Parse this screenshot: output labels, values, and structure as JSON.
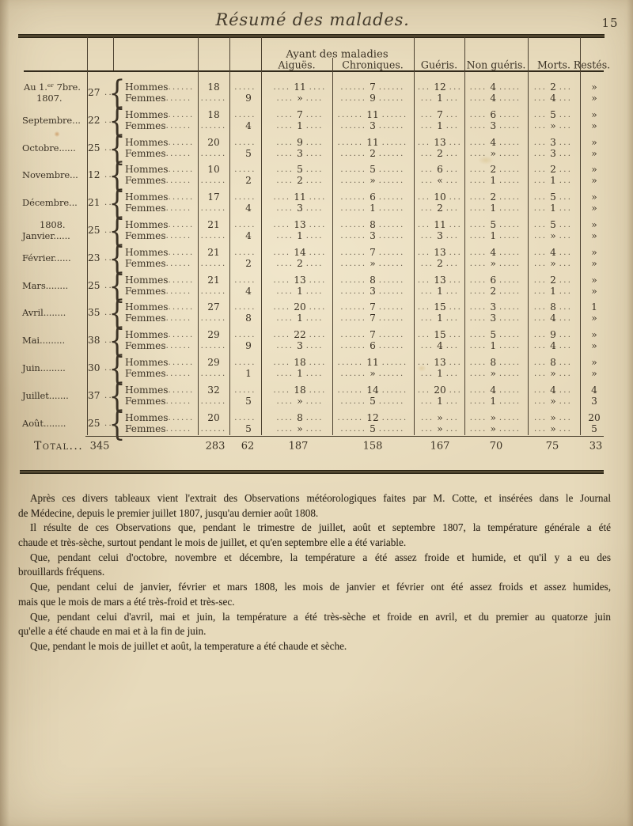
{
  "page": {
    "title": "Résumé des malades.",
    "page_number": "15"
  },
  "table": {
    "header": {
      "group": "Ayant des maladies",
      "aigues": "Aiguës.",
      "chroniques": "Chroniques.",
      "gueris": "Guéris.",
      "non_gueris": "Non guéris.",
      "morts": "Morts.",
      "restes": "Restés."
    },
    "labels": {
      "hommes": "Hommes",
      "femmes": "Femmes"
    },
    "months": [
      {
        "name_top": "Au 1.ᵉʳ 7bre.",
        "name": "1807.",
        "admis": "27",
        "hommes": {
          "count": "18",
          "aigues": "11",
          "chroniques": "7",
          "gueris": "12",
          "non_gueris": "4",
          "morts": "2",
          "restes": "»"
        },
        "femmes": {
          "count": "9",
          "aigues": "»",
          "chroniques": "9",
          "gueris": "1",
          "non_gueris": "4",
          "morts": "4",
          "restes": "»"
        }
      },
      {
        "name": "Septembre...",
        "admis": "22",
        "hommes": {
          "count": "18",
          "aigues": "7",
          "chroniques": "11",
          "gueris": "7",
          "non_gueris": "6",
          "morts": "5",
          "restes": "»"
        },
        "femmes": {
          "count": "4",
          "aigues": "1",
          "chroniques": "3",
          "gueris": "1",
          "non_gueris": "3",
          "morts": "»",
          "restes": "»"
        }
      },
      {
        "name": "Octobre......",
        "admis": "25",
        "hommes": {
          "count": "20",
          "aigues": "9",
          "chroniques": "11",
          "gueris": "13",
          "non_gueris": "4",
          "morts": "3",
          "restes": "»"
        },
        "femmes": {
          "count": "5",
          "aigues": "3",
          "chroniques": "2",
          "gueris": "2",
          "non_gueris": "»",
          "morts": "3",
          "restes": "»"
        }
      },
      {
        "name": "Novembre...",
        "admis": "12",
        "hommes": {
          "count": "10",
          "aigues": "5",
          "chroniques": "5",
          "gueris": "6",
          "non_gueris": "2",
          "morts": "2",
          "restes": "»"
        },
        "femmes": {
          "count": "2",
          "aigues": "2",
          "chroniques": "»",
          "gueris": "«",
          "non_gueris": "1",
          "morts": "1",
          "restes": "»"
        }
      },
      {
        "name": "Décembre...",
        "admis": "21",
        "hommes": {
          "count": "17",
          "aigues": "11",
          "chroniques": "6",
          "gueris": "10",
          "non_gueris": "2",
          "morts": "5",
          "restes": "»"
        },
        "femmes": {
          "count": "4",
          "aigues": "3",
          "chroniques": "1",
          "gueris": "2",
          "non_gueris": "1",
          "morts": "1",
          "restes": "»"
        }
      },
      {
        "name_top": "1808.",
        "name": "Janvier......",
        "admis": "25",
        "hommes": {
          "count": "21",
          "aigues": "13",
          "chroniques": "8",
          "gueris": "11",
          "non_gueris": "5",
          "morts": "5",
          "restes": "»"
        },
        "femmes": {
          "count": "4",
          "aigues": "1",
          "chroniques": "3",
          "gueris": "3",
          "non_gueris": "1",
          "morts": "»",
          "restes": "»"
        }
      },
      {
        "name": "Février......",
        "admis": "23",
        "hommes": {
          "count": "21",
          "aigues": "14",
          "chroniques": "7",
          "gueris": "13",
          "non_gueris": "4",
          "morts": "4",
          "restes": "»"
        },
        "femmes": {
          "count": "2",
          "aigues": "2",
          "chroniques": "»",
          "gueris": "2",
          "non_gueris": "»",
          "morts": "»",
          "restes": "»"
        }
      },
      {
        "name": "Mars........",
        "admis": "25",
        "hommes": {
          "count": "21",
          "aigues": "13",
          "chroniques": "8",
          "gueris": "13",
          "non_gueris": "6",
          "morts": "2",
          "restes": "»"
        },
        "femmes": {
          "count": "4",
          "aigues": "1",
          "chroniques": "3",
          "gueris": "1",
          "non_gueris": "2",
          "morts": "1",
          "restes": "»"
        }
      },
      {
        "name": "Avril........",
        "admis": "35",
        "hommes": {
          "count": "27",
          "aigues": "20",
          "chroniques": "7",
          "gueris": "15",
          "non_gueris": "3",
          "morts": "8",
          "restes": "1"
        },
        "femmes": {
          "count": "8",
          "aigues": "1",
          "chroniques": "7",
          "gueris": "1",
          "non_gueris": "3",
          "morts": "4",
          "restes": "»"
        }
      },
      {
        "name": "Mai.........",
        "admis": "38",
        "hommes": {
          "count": "29",
          "aigues": "22",
          "chroniques": "7",
          "gueris": "15",
          "non_gueris": "5",
          "morts": "9",
          "restes": "»"
        },
        "femmes": {
          "count": "9",
          "aigues": "3",
          "chroniques": "6",
          "gueris": "4",
          "non_gueris": "1",
          "morts": "4",
          "restes": "»"
        }
      },
      {
        "name": "Juin.........",
        "admis": "30",
        "hommes": {
          "count": "29",
          "aigues": "18",
          "chroniques": "11",
          "gueris": "13",
          "non_gueris": "8",
          "morts": "8",
          "restes": "»"
        },
        "femmes": {
          "count": "1",
          "aigues": "1",
          "chroniques": "»",
          "gueris": "1",
          "non_gueris": "»",
          "morts": "»",
          "restes": "»"
        }
      },
      {
        "name": "Juillet.......",
        "admis": "37",
        "hommes": {
          "count": "32",
          "aigues": "18",
          "chroniques": "14",
          "gueris": "20",
          "non_gueris": "4",
          "morts": "4",
          "restes": "4"
        },
        "femmes": {
          "count": "5",
          "aigues": "»",
          "chroniques": "5",
          "gueris": "1",
          "non_gueris": "1",
          "morts": "»",
          "restes": "3"
        }
      },
      {
        "name": "Août........",
        "admis": "25",
        "hommes": {
          "count": "20",
          "aigues": "8",
          "chroniques": "12",
          "gueris": "»",
          "non_gueris": "»",
          "morts": "»",
          "restes": "20"
        },
        "femmes": {
          "count": "5",
          "aigues": "»",
          "chroniques": "5",
          "gueris": "»",
          "non_gueris": "»",
          "morts": "»",
          "restes": "5"
        }
      }
    ],
    "total": {
      "label": "Total...",
      "admis": "345",
      "hommes": "283",
      "femmes": "62",
      "aigues": "187",
      "chroniques": "158",
      "gueris": "167",
      "non_gueris": "70",
      "morts": "75",
      "restes": "33"
    }
  },
  "paragraphs": [
    {
      "lines": [
        "Après ces divers tableaux vient l'extrait des Observations météorologiques faites par M. Cotte, et insérées dans le Journal",
        "de Médecine, depuis le premier juillet 1807, jusqu'au dernier août 1808."
      ]
    },
    {
      "lines": [
        "Il résulte de ces Observations que, pendant le trimestre de juillet, août et septembre 1807, la température générale a été",
        "chaude et très-sèche, surtout pendant le mois de juillet, et qu'en septembre elle a été variable."
      ]
    },
    {
      "lines": [
        "Que, pendant celui d'octobre, novembre et décembre, la température a été assez froide et humide, et qu'il y a eu des",
        "brouillards fréquens."
      ]
    },
    {
      "lines": [
        "Que, pendant celui de janvier, février et mars 1808, les mois de janvier et février ont été assez froids et assez humides,",
        "mais que le mois de mars a été très-froid et très-sec."
      ]
    },
    {
      "lines": [
        "Que, pendant celui d'avril, mai et juin, la température a été très-sèche et froide en avril, et du premier au quatorze juin",
        "qu'elle a été chaude en mai et à la fin de juin."
      ]
    },
    {
      "lines": [
        "Que, pendant le mois de juillet et août, la temperature a été chaude et sèche."
      ]
    }
  ]
}
